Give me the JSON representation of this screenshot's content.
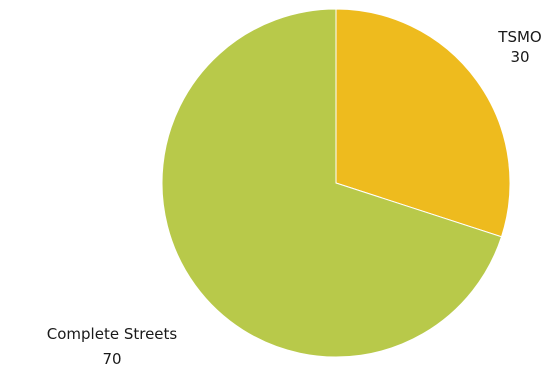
{
  "chart_data": {
    "type": "pie",
    "title": "",
    "slices": [
      {
        "label": "TSMO",
        "value": 30,
        "value_label": "30",
        "color": "#eebb1e"
      },
      {
        "label": "Complete Streets",
        "value": 70,
        "value_label": "70",
        "color": "#b8c94a"
      }
    ],
    "start_angle_deg": 0,
    "direction": "clockwise",
    "legend": "none",
    "data_labels": "outside"
  }
}
